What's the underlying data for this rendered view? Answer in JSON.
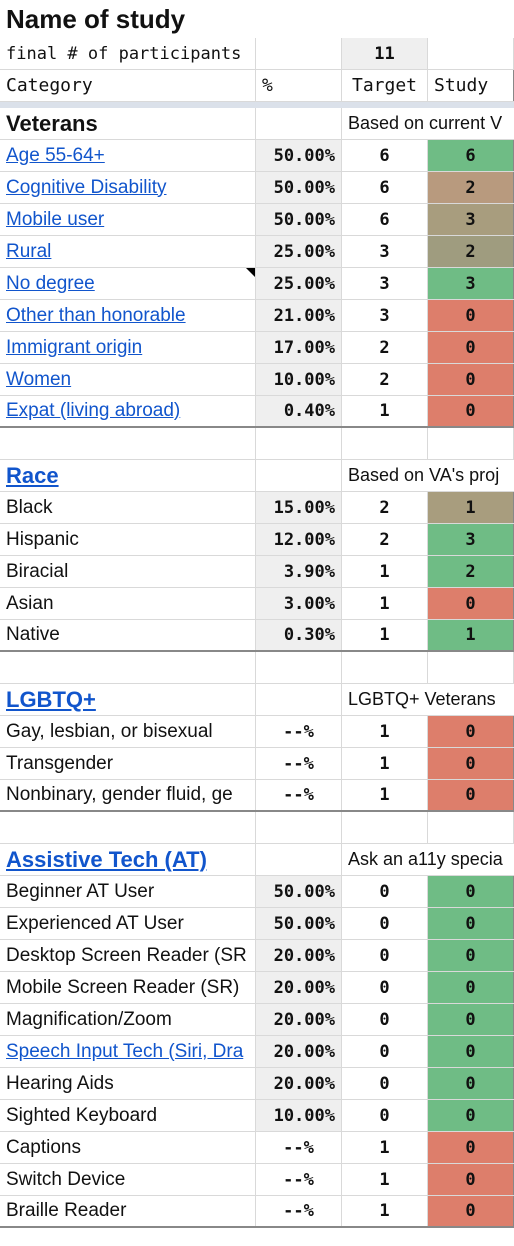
{
  "title": "Name of study",
  "participants_row": {
    "label": "final # of participants",
    "value": "11"
  },
  "header": {
    "category": "Category",
    "percent": "%",
    "target": "Target",
    "study": "Study"
  },
  "sections": [
    {
      "name": "Veterans",
      "is_link": false,
      "note": "Based on current V",
      "rows": [
        {
          "label": "Age 55-64+",
          "link": true,
          "pct": "50.00%",
          "target": "6",
          "study": "6",
          "status": "green"
        },
        {
          "label": "Cognitive Disability",
          "link": true,
          "pct": "50.00%",
          "target": "6",
          "study": "2",
          "status": "brown"
        },
        {
          "label": "Mobile user",
          "link": true,
          "pct": "50.00%",
          "target": "6",
          "study": "3",
          "status": "tan"
        },
        {
          "label": "Rural",
          "link": true,
          "pct": "25.00%",
          "target": "3",
          "study": "2",
          "status": "olive"
        },
        {
          "label": "No degree",
          "link": true,
          "pct": "25.00%",
          "target": "3",
          "study": "3",
          "status": "green",
          "comment": true
        },
        {
          "label": "Other than honorable",
          "link": true,
          "pct": "21.00%",
          "target": "3",
          "study": "0",
          "status": "red"
        },
        {
          "label": "Immigrant origin",
          "link": true,
          "pct": "17.00%",
          "target": "2",
          "study": "0",
          "status": "red"
        },
        {
          "label": "Women",
          "link": true,
          "pct": "10.00%",
          "target": "2",
          "study": "0",
          "status": "red"
        },
        {
          "label": "Expat (living abroad)",
          "link": true,
          "pct": "0.40%",
          "target": "1",
          "study": "0",
          "status": "red"
        }
      ]
    },
    {
      "name": "Race",
      "is_link": true,
      "note": "Based on VA's proj",
      "rows": [
        {
          "label": "Black",
          "link": false,
          "pct": "15.00%",
          "target": "2",
          "study": "1",
          "status": "tan"
        },
        {
          "label": "Hispanic",
          "link": false,
          "pct": "12.00%",
          "target": "2",
          "study": "3",
          "status": "green"
        },
        {
          "label": "Biracial",
          "link": false,
          "pct": "3.90%",
          "target": "1",
          "study": "2",
          "status": "green"
        },
        {
          "label": "Asian",
          "link": false,
          "pct": "3.00%",
          "target": "1",
          "study": "0",
          "status": "red"
        },
        {
          "label": "Native",
          "link": false,
          "pct": "0.30%",
          "target": "1",
          "study": "1",
          "status": "green"
        }
      ]
    },
    {
      "name": "LGBTQ+",
      "is_link": true,
      "note": "LGBTQ+ Veterans",
      "rows": [
        {
          "label": "Gay, lesbian, or bisexual",
          "link": false,
          "pct": "--%",
          "target": "1",
          "study": "0",
          "status": "red",
          "pct_plain": true
        },
        {
          "label": "Transgender",
          "link": false,
          "pct": "--%",
          "target": "1",
          "study": "0",
          "status": "red",
          "pct_plain": true
        },
        {
          "label": "Nonbinary, gender fluid, ge",
          "link": false,
          "pct": "--%",
          "target": "1",
          "study": "0",
          "status": "red",
          "pct_plain": true
        }
      ]
    },
    {
      "name": "Assistive Tech (AT)",
      "is_link": true,
      "note": "Ask an a11y specia",
      "rows": [
        {
          "label": "Beginner AT User",
          "link": false,
          "pct": "50.00%",
          "target": "0",
          "study": "0",
          "status": "green"
        },
        {
          "label": "Experienced AT User",
          "link": false,
          "pct": "50.00%",
          "target": "0",
          "study": "0",
          "status": "green"
        },
        {
          "label": "Desktop Screen Reader (SR",
          "link": false,
          "pct": "20.00%",
          "target": "0",
          "study": "0",
          "status": "green"
        },
        {
          "label": "Mobile Screen Reader (SR)",
          "link": false,
          "pct": "20.00%",
          "target": "0",
          "study": "0",
          "status": "green"
        },
        {
          "label": "Magnification/Zoom",
          "link": false,
          "pct": "20.00%",
          "target": "0",
          "study": "0",
          "status": "green"
        },
        {
          "label": "Speech Input Tech (Siri, Dra",
          "link": true,
          "pct": "20.00%",
          "target": "0",
          "study": "0",
          "status": "green"
        },
        {
          "label": "Hearing Aids",
          "link": false,
          "pct": "20.00%",
          "target": "0",
          "study": "0",
          "status": "green"
        },
        {
          "label": "Sighted Keyboard",
          "link": false,
          "pct": "10.00%",
          "target": "0",
          "study": "0",
          "status": "green"
        },
        {
          "label": "Captions",
          "link": false,
          "pct": "--%",
          "target": "1",
          "study": "0",
          "status": "red",
          "pct_plain": true
        },
        {
          "label": "Switch Device",
          "link": false,
          "pct": "--%",
          "target": "1",
          "study": "0",
          "status": "red",
          "pct_plain": true
        },
        {
          "label": "Braille Reader",
          "link": false,
          "pct": "--%",
          "target": "1",
          "study": "0",
          "status": "red",
          "pct_plain": true
        }
      ]
    }
  ],
  "status_colors": {
    "green": "#6fbc85",
    "red": "#dd7e6b",
    "tan": "#a89d7e",
    "brown": "#b89a7e",
    "olive": "#9f9c7f"
  }
}
